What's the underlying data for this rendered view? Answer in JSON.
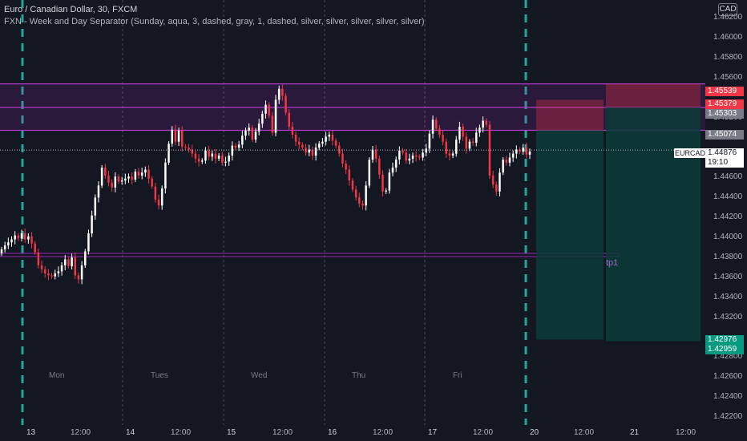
{
  "legend": {
    "symbol_line": "Euro / Canadian Dollar, 30, FXCM",
    "indicator_line": "FXN - Week and Day Separator (Sunday, aqua, 3, dashed, gray, 1, dashed, silver, silver, silver, silver, silver)"
  },
  "currency_button": "CAD",
  "price_axis": [
    "1.46200",
    "1.46000",
    "1.45800",
    "1.45600",
    "1.45200",
    "1.45000",
    "1.44600",
    "1.44400",
    "1.44200",
    "1.44000",
    "1.43800",
    "1.43600",
    "1.43400",
    "1.43200",
    "1.42800",
    "1.42600",
    "1.42400",
    "1.42200"
  ],
  "price_badges": {
    "zone_top": "1.45539",
    "stop_loss": "1.45379",
    "zone_mid": "1.45303",
    "zone_bottom": "1.45074",
    "target_1": "1.42976",
    "target_2": "1.42959"
  },
  "symbol_badge": "EURCAD",
  "current_price": "1.44876",
  "countdown": "19:10",
  "tp_label": "tp1",
  "day_labels": [
    "Mon",
    "Tues",
    "Wed",
    "Thu",
    "Fri"
  ],
  "time_axis": [
    "13",
    "12:00",
    "14",
    "12:00",
    "15",
    "12:00",
    "16",
    "12:00",
    "17",
    "12:00",
    "20",
    "12:00",
    "21",
    "12:00"
  ],
  "colors": {
    "background": "#131722",
    "up_candle": "#ffffff",
    "down_candle": "#f23645",
    "week_separator": "#26a69a",
    "zone": "#9c27b0",
    "stop_zone": "#f23645",
    "target_zone": "#0c3b3a"
  },
  "chart_data": {
    "type": "candlestick",
    "symbol": "EURCAD",
    "timeframe": "30",
    "ylim": [
      1.4212,
      1.4638
    ],
    "series_close": [
      1.4388,
      1.4392,
      1.4395,
      1.4398,
      1.4402,
      1.4399,
      1.4404,
      1.4398,
      1.4401,
      1.4394,
      1.4385,
      1.4372,
      1.4368,
      1.4364,
      1.4362,
      1.4361,
      1.4364,
      1.4366,
      1.4372,
      1.4378,
      1.4371,
      1.438,
      1.4362,
      1.4358,
      1.4372,
      1.4386,
      1.4404,
      1.4422,
      1.444,
      1.4452,
      1.447,
      1.4462,
      1.4455,
      1.445,
      1.4461,
      1.4456,
      1.4457,
      1.4459,
      1.4461,
      1.4458,
      1.4466,
      1.4462,
      1.4465,
      1.4468,
      1.4459,
      1.4451,
      1.4438,
      1.4432,
      1.4449,
      1.4475,
      1.4494,
      1.4508,
      1.4496,
      1.4507,
      1.4491,
      1.449,
      1.4488,
      1.4484,
      1.4479,
      1.4476,
      1.4477,
      1.4487,
      1.4481,
      1.4484,
      1.4479,
      1.4482,
      1.4475,
      1.4476,
      1.4482,
      1.4492,
      1.449,
      1.4493,
      1.4502,
      1.4507,
      1.451,
      1.4498,
      1.4506,
      1.4514,
      1.4524,
      1.4533,
      1.4522,
      1.4505,
      1.4538,
      1.4549,
      1.4542,
      1.4525,
      1.4511,
      1.4503,
      1.4496,
      1.4493,
      1.449,
      1.4485,
      1.4488,
      1.4482,
      1.449,
      1.4494,
      1.4496,
      1.4501,
      1.4503,
      1.4497,
      1.4492,
      1.4484,
      1.4474,
      1.4468,
      1.4457,
      1.4448,
      1.444,
      1.4434,
      1.4432,
      1.4452,
      1.4478,
      1.4488,
      1.4479,
      1.4463,
      1.4446,
      1.4447,
      1.4465,
      1.447,
      1.4478,
      1.4487,
      1.4485,
      1.4477,
      1.4479,
      1.4482,
      1.4481,
      1.448,
      1.4485,
      1.4489,
      1.4504,
      1.4518,
      1.4509,
      1.4503,
      1.4496,
      1.4484,
      1.4482,
      1.4484,
      1.4498,
      1.4511,
      1.4501,
      1.4489,
      1.4496,
      1.4495,
      1.4505,
      1.451,
      1.4517,
      1.4513,
      1.4462,
      1.4453,
      1.4446,
      1.4465,
      1.4478,
      1.4475,
      1.448,
      1.4484,
      1.4488,
      1.4486,
      1.449,
      1.4483,
      1.4486
    ]
  }
}
